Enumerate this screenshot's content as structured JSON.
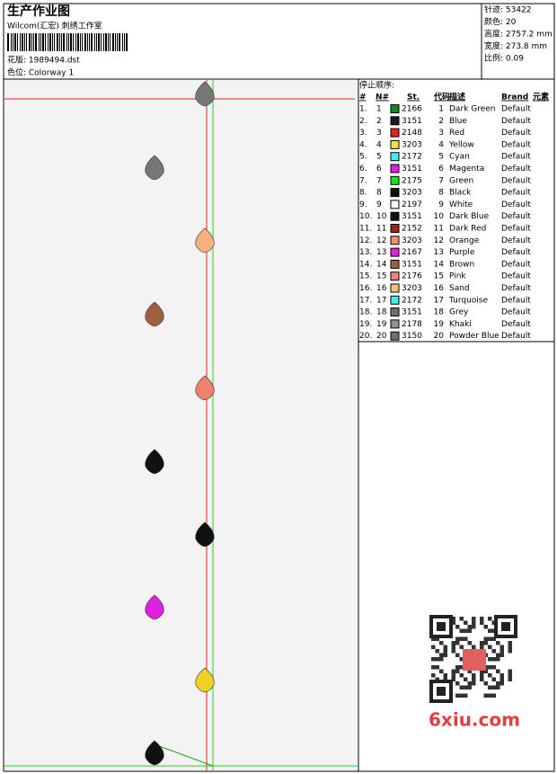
{
  "header": {
    "title": "生产作业图",
    "studio": "Wilcom(汇宏) 刺绣工作室",
    "design": "花版: 1989494.dst",
    "colorway": "色位: Colorway 1",
    "stats": [
      "针迹: 53422",
      "颜色: 20",
      "高度: 2757.2 mm",
      "宽度: 273.8 mm",
      "比例: 0.09"
    ]
  },
  "table": {
    "caption": "停止顺序:",
    "columns": [
      "#",
      "N#",
      "St.",
      "代码",
      "描述",
      "Brand",
      "元素"
    ],
    "rows": [
      [
        "1.",
        "1",
        "#1a8a1a",
        "2166",
        "1",
        "Dark Green",
        "Default"
      ],
      [
        "2.",
        "2",
        "#1a1a2a",
        "3151",
        "2",
        "Blue",
        "Default"
      ],
      [
        "3.",
        "3",
        "#e82020",
        "2148",
        "3",
        "Red",
        "Default"
      ],
      [
        "4.",
        "4",
        "#f0e040",
        "3203",
        "4",
        "Yellow",
        "Default"
      ],
      [
        "5.",
        "5",
        "#40f0f0",
        "2172",
        "5",
        "Cyan",
        "Default"
      ],
      [
        "6.",
        "6",
        "#e020e0",
        "3151",
        "6",
        "Magenta",
        "Default"
      ],
      [
        "7.",
        "7",
        "#20e020",
        "2175",
        "7",
        "Green",
        "Default"
      ],
      [
        "8.",
        "8",
        "#101010",
        "3203",
        "8",
        "Black",
        "Default"
      ],
      [
        "9.",
        "9",
        "#f8f8f8",
        "2197",
        "9",
        "White",
        "Default"
      ],
      [
        "10.",
        "10",
        "#101018",
        "3151",
        "10",
        "Dark Blue",
        "Default"
      ],
      [
        "11.",
        "11",
        "#a02020",
        "2152",
        "11",
        "Dark Red",
        "Default"
      ],
      [
        "12.",
        "12",
        "#f09070",
        "3203",
        "12",
        "Orange",
        "Default"
      ],
      [
        "13.",
        "13",
        "#e020e0",
        "2167",
        "13",
        "Purple",
        "Default"
      ],
      [
        "14.",
        "14",
        "#a06040",
        "3151",
        "14",
        "Brown",
        "Default"
      ],
      [
        "15.",
        "15",
        "#f08080",
        "2176",
        "15",
        "Pink",
        "Default"
      ],
      [
        "16.",
        "16",
        "#f0c080",
        "3203",
        "16",
        "Sand",
        "Default"
      ],
      [
        "17.",
        "17",
        "#40f0e0",
        "2172",
        "17",
        "Turquoise",
        "Default"
      ],
      [
        "18.",
        "18",
        "#707070",
        "3151",
        "18",
        "Grey",
        "Default"
      ],
      [
        "19.",
        "19",
        "#909090",
        "2178",
        "19",
        "Khaki",
        "Default"
      ],
      [
        "20.",
        "20",
        "#707070",
        "3150",
        "20",
        "Powder Blue",
        "Default"
      ]
    ]
  },
  "watermark": "6xiu.com"
}
